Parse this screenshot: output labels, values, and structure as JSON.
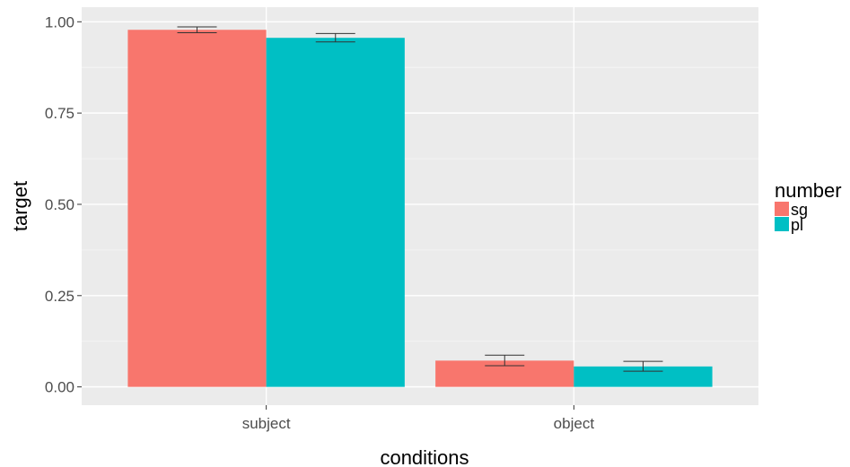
{
  "chart_data": {
    "type": "bar",
    "title": "",
    "xlabel": "conditions",
    "ylabel": "target",
    "categories": [
      "subject",
      "object"
    ],
    "ylim": [
      -0.05,
      1.04
    ],
    "yticks": [
      0.0,
      0.25,
      0.5,
      0.75,
      1.0
    ],
    "ytick_labels": [
      "0.00",
      "0.25",
      "0.50",
      "0.75",
      "1.00"
    ],
    "grid": true,
    "legend": {
      "title": "number",
      "placement": "right"
    },
    "series": [
      {
        "name": "sg",
        "color": "#F8766D",
        "values": [
          0.978,
          0.072
        ],
        "error_low": [
          0.97,
          0.058
        ],
        "error_high": [
          0.986,
          0.087
        ]
      },
      {
        "name": "pl",
        "color": "#00BFC4",
        "values": [
          0.956,
          0.056
        ],
        "error_low": [
          0.945,
          0.043
        ],
        "error_high": [
          0.968,
          0.07
        ]
      }
    ]
  }
}
